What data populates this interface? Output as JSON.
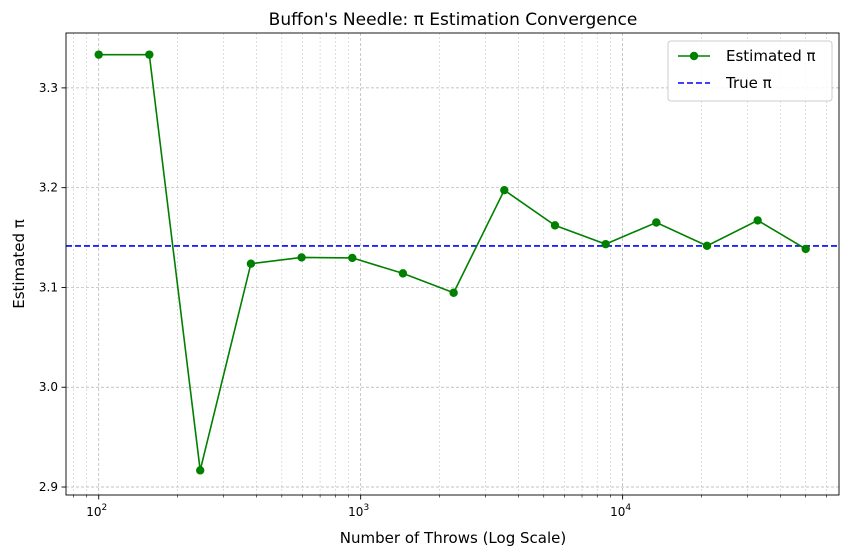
{
  "chart_data": {
    "type": "line",
    "title": "Buffon's Needle: π Estimation Convergence",
    "xlabel": "Number of Throws (Log Scale)",
    "ylabel": "Estimated π",
    "xscale": "log",
    "xlim": [
      75,
      67000
    ],
    "ylim": [
      2.892,
      3.355
    ],
    "x_ticks": [
      {
        "value": 100,
        "base": "10",
        "exp": "2"
      },
      {
        "value": 1000,
        "base": "10",
        "exp": "3"
      },
      {
        "value": 10000,
        "base": "10",
        "exp": "4"
      }
    ],
    "y_ticks": [
      {
        "value": 2.9,
        "label": "2.9"
      },
      {
        "value": 3.0,
        "label": "3.0"
      },
      {
        "value": 3.1,
        "label": "3.1"
      },
      {
        "value": 3.2,
        "label": "3.2"
      },
      {
        "value": 3.3,
        "label": "3.3"
      }
    ],
    "grid": true,
    "legend_position": "top-right",
    "series": [
      {
        "name": "Estimated π",
        "color": "#008000",
        "marker": "circle",
        "x": [
          100,
          156,
          244,
          381,
          595,
          929,
          1450,
          2264,
          3534,
          5518,
          8615,
          13449,
          20997,
          32781,
          50000
        ],
        "y": [
          3.3333,
          3.3333,
          2.9167,
          3.1238,
          3.1301,
          3.1296,
          3.1141,
          3.0947,
          3.1975,
          3.1622,
          3.1434,
          3.1651,
          3.1417,
          3.1672,
          3.1386
        ]
      }
    ],
    "reference_lines": [
      {
        "name": "True π",
        "y": 3.14159,
        "color": "#0000ff",
        "style": "dashed"
      }
    ]
  }
}
